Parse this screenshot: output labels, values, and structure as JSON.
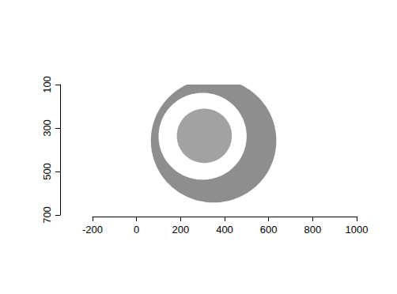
{
  "chart_data": {
    "type": "image",
    "xlim": [
      -200,
      1000
    ],
    "xticks": [
      -200,
      0,
      200,
      400,
      600,
      800,
      1000
    ],
    "ylim": [
      700,
      100
    ],
    "yticks": [
      100,
      300,
      500,
      700
    ],
    "regions": [
      {
        "shape": "disc",
        "cx": 350,
        "cy": 358,
        "r": 285,
        "color": "#8e8e8e"
      },
      {
        "shape": "disc",
        "cx": 300,
        "cy": 338,
        "r": 200,
        "color": "#ffffff"
      },
      {
        "shape": "disc",
        "cx": 308,
        "cy": 336,
        "r": 125,
        "color": "#a2a2a2"
      }
    ]
  }
}
